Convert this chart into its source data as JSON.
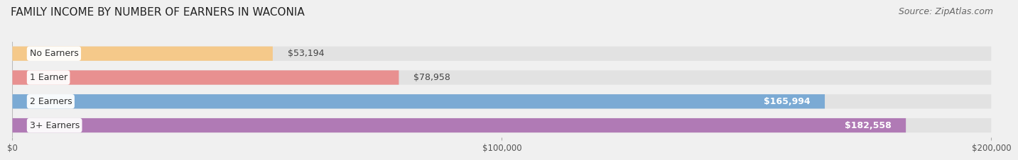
{
  "title": "FAMILY INCOME BY NUMBER OF EARNERS IN WACONIA",
  "source": "Source: ZipAtlas.com",
  "categories": [
    "No Earners",
    "1 Earner",
    "2 Earners",
    "3+ Earners"
  ],
  "values": [
    53194,
    78958,
    165994,
    182558
  ],
  "bar_colors": [
    "#f5c98a",
    "#e89090",
    "#7baad4",
    "#b07ab5"
  ],
  "background_color": "#f0f0f0",
  "bar_bg_color": "#e2e2e2",
  "xlim": [
    0,
    200000
  ],
  "xticks": [
    0,
    100000,
    200000
  ],
  "xtick_labels": [
    "$0",
    "$100,000",
    "$200,000"
  ],
  "title_fontsize": 11,
  "source_fontsize": 9,
  "label_fontsize": 9,
  "value_fontsize": 9
}
